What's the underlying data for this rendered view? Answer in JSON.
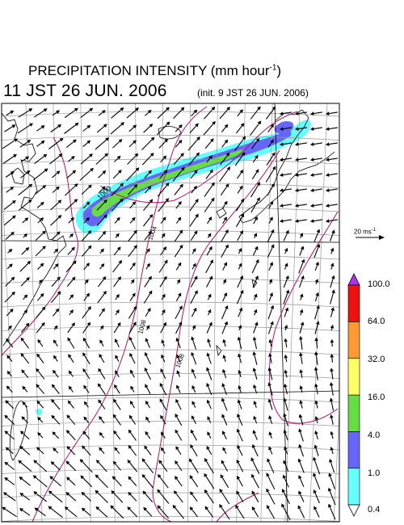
{
  "header": {
    "title": "PRECIPITATION INTENSITY (mm hour",
    "title_sup": "-1",
    "title_end": ")",
    "valid": "11 JST 26 JUN. 2006",
    "init": "(init. 9 JST 26 JUN. 2006)"
  },
  "reference_vector": {
    "label": "20 ms",
    "label_sup": "-1"
  },
  "colorbar": {
    "ticks": [
      "0.4",
      "1.0",
      "4.0",
      "16.0",
      "32.0",
      "64.0",
      "100.0"
    ],
    "colors": [
      "#66ffff",
      "#6666ff",
      "#66dd44",
      "#ffff66",
      "#ff9933",
      "#ee1111",
      "#aa33ee"
    ]
  },
  "isobars": {
    "color": "#b0106a",
    "labels": [
      "1000",
      "1004",
      "1008",
      "1008"
    ]
  },
  "map": {
    "grid_color": "#999999",
    "coast_color": "#000000"
  }
}
